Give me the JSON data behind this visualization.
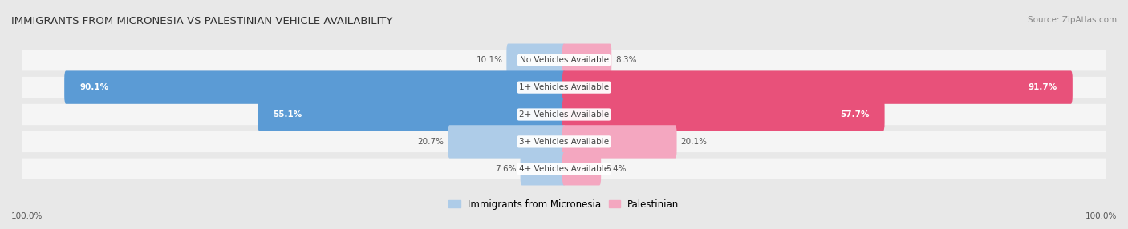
{
  "title": "IMMIGRANTS FROM MICRONESIA VS PALESTINIAN VEHICLE AVAILABILITY",
  "source": "Source: ZipAtlas.com",
  "categories": [
    "No Vehicles Available",
    "1+ Vehicles Available",
    "2+ Vehicles Available",
    "3+ Vehicles Available",
    "4+ Vehicles Available"
  ],
  "micronesia_values": [
    10.1,
    90.1,
    55.1,
    20.7,
    7.6
  ],
  "palestinian_values": [
    8.3,
    91.7,
    57.7,
    20.1,
    6.4
  ],
  "micronesia_color_strong": "#5b9bd5",
  "micronesia_color_light": "#aecce8",
  "palestinian_color_strong": "#e8517a",
  "palestinian_color_light": "#f4a7c0",
  "bar_height": 0.62,
  "background_color": "#e8e8e8",
  "row_bg_color": "#f5f5f5",
  "footer_label": "100.0%",
  "legend_micronesia": "Immigrants from Micronesia",
  "legend_palestinian": "Palestinian"
}
